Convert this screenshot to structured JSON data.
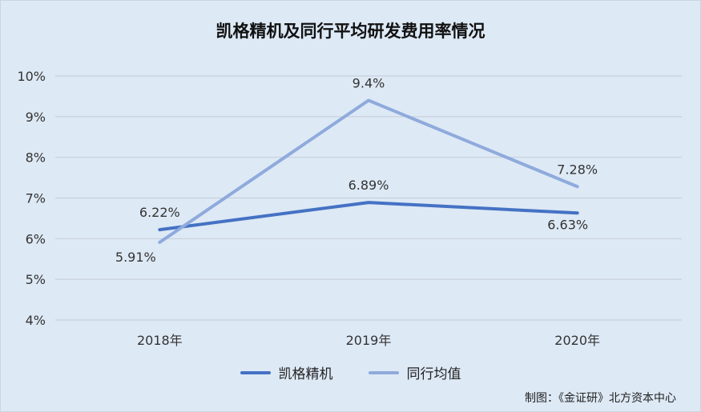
{
  "chart_data": {
    "type": "line",
    "title": "凯格精机及同行平均研发费用率情况",
    "categories": [
      "2018年",
      "2019年",
      "2020年"
    ],
    "ylim": [
      4,
      10
    ],
    "y_ticks": [
      "4%",
      "5%",
      "6%",
      "7%",
      "8%",
      "9%",
      "10%"
    ],
    "grid": true,
    "legend_position": "bottom",
    "series": [
      {
        "name": "凯格精机",
        "values": [
          6.22,
          6.89,
          6.63
        ],
        "labels": [
          "6.22%",
          "6.89%",
          "6.63%"
        ],
        "color": "#4472c4"
      },
      {
        "name": "同行均值",
        "values": [
          5.91,
          9.4,
          7.28
        ],
        "labels": [
          "5.91%",
          "9.4%",
          "7.28%"
        ],
        "color": "#8faadc"
      }
    ]
  },
  "source": "制图：《金证研》北方资本中心"
}
